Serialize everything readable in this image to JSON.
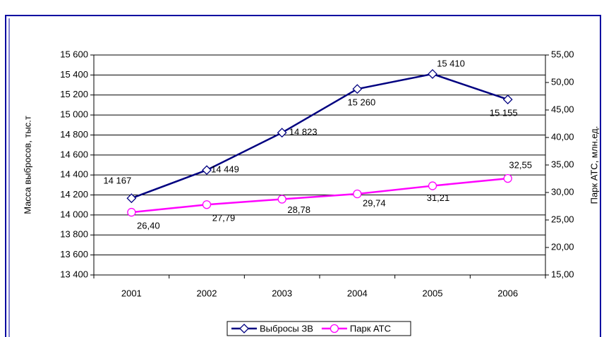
{
  "chart_data": {
    "type": "line",
    "categories": [
      "2001",
      "2002",
      "2003",
      "2004",
      "2005",
      "2006"
    ],
    "series": [
      {
        "name": "Выбросы ЗВ",
        "color": "#000080",
        "marker": "diamond",
        "values": [
          14167,
          14449,
          14823,
          15260,
          15410,
          15155
        ],
        "value_labels": [
          "14 167",
          "14 449",
          "14 823",
          "15 260",
          "15 410",
          "15 155"
        ]
      },
      {
        "name": "Парк АТС",
        "color": "#ff00ff",
        "marker": "circle",
        "axis": "y2",
        "values": [
          26.4,
          27.79,
          28.78,
          29.74,
          31.21,
          32.55
        ],
        "value_labels": [
          "26,40",
          "27,79",
          "28,78",
          "29,74",
          "31,21",
          "32,55"
        ]
      }
    ],
    "y_label": "Масса выбросов, тыс.т",
    "y2_label": "Парк АТС, млн.ед.",
    "ylim": [
      13400,
      15600
    ],
    "yticks": [
      {
        "value": 13400,
        "label": "13 400"
      },
      {
        "value": 13600,
        "label": "13 600"
      },
      {
        "value": 13800,
        "label": "13 800"
      },
      {
        "value": 14000,
        "label": "14 000"
      },
      {
        "value": 14200,
        "label": "14 200"
      },
      {
        "value": 14400,
        "label": "14 400"
      },
      {
        "value": 14600,
        "label": "14 600"
      },
      {
        "value": 14800,
        "label": "14 800"
      },
      {
        "value": 15000,
        "label": "15 000"
      },
      {
        "value": 15200,
        "label": "15 200"
      },
      {
        "value": 15400,
        "label": "15 400"
      },
      {
        "value": 15600,
        "label": "15 600"
      }
    ],
    "y2lim": [
      15,
      55
    ],
    "y2ticks": [
      {
        "value": 15,
        "label": "15,00"
      },
      {
        "value": 20,
        "label": "20,00"
      },
      {
        "value": 25,
        "label": "25,00"
      },
      {
        "value": 30,
        "label": "30,00"
      },
      {
        "value": 35,
        "label": "35,00"
      },
      {
        "value": 40,
        "label": "40,00"
      },
      {
        "value": 45,
        "label": "45,00"
      },
      {
        "value": 50,
        "label": "50,00"
      },
      {
        "value": 55,
        "label": "55,00"
      }
    ],
    "grid": true,
    "legend": "bottom"
  }
}
